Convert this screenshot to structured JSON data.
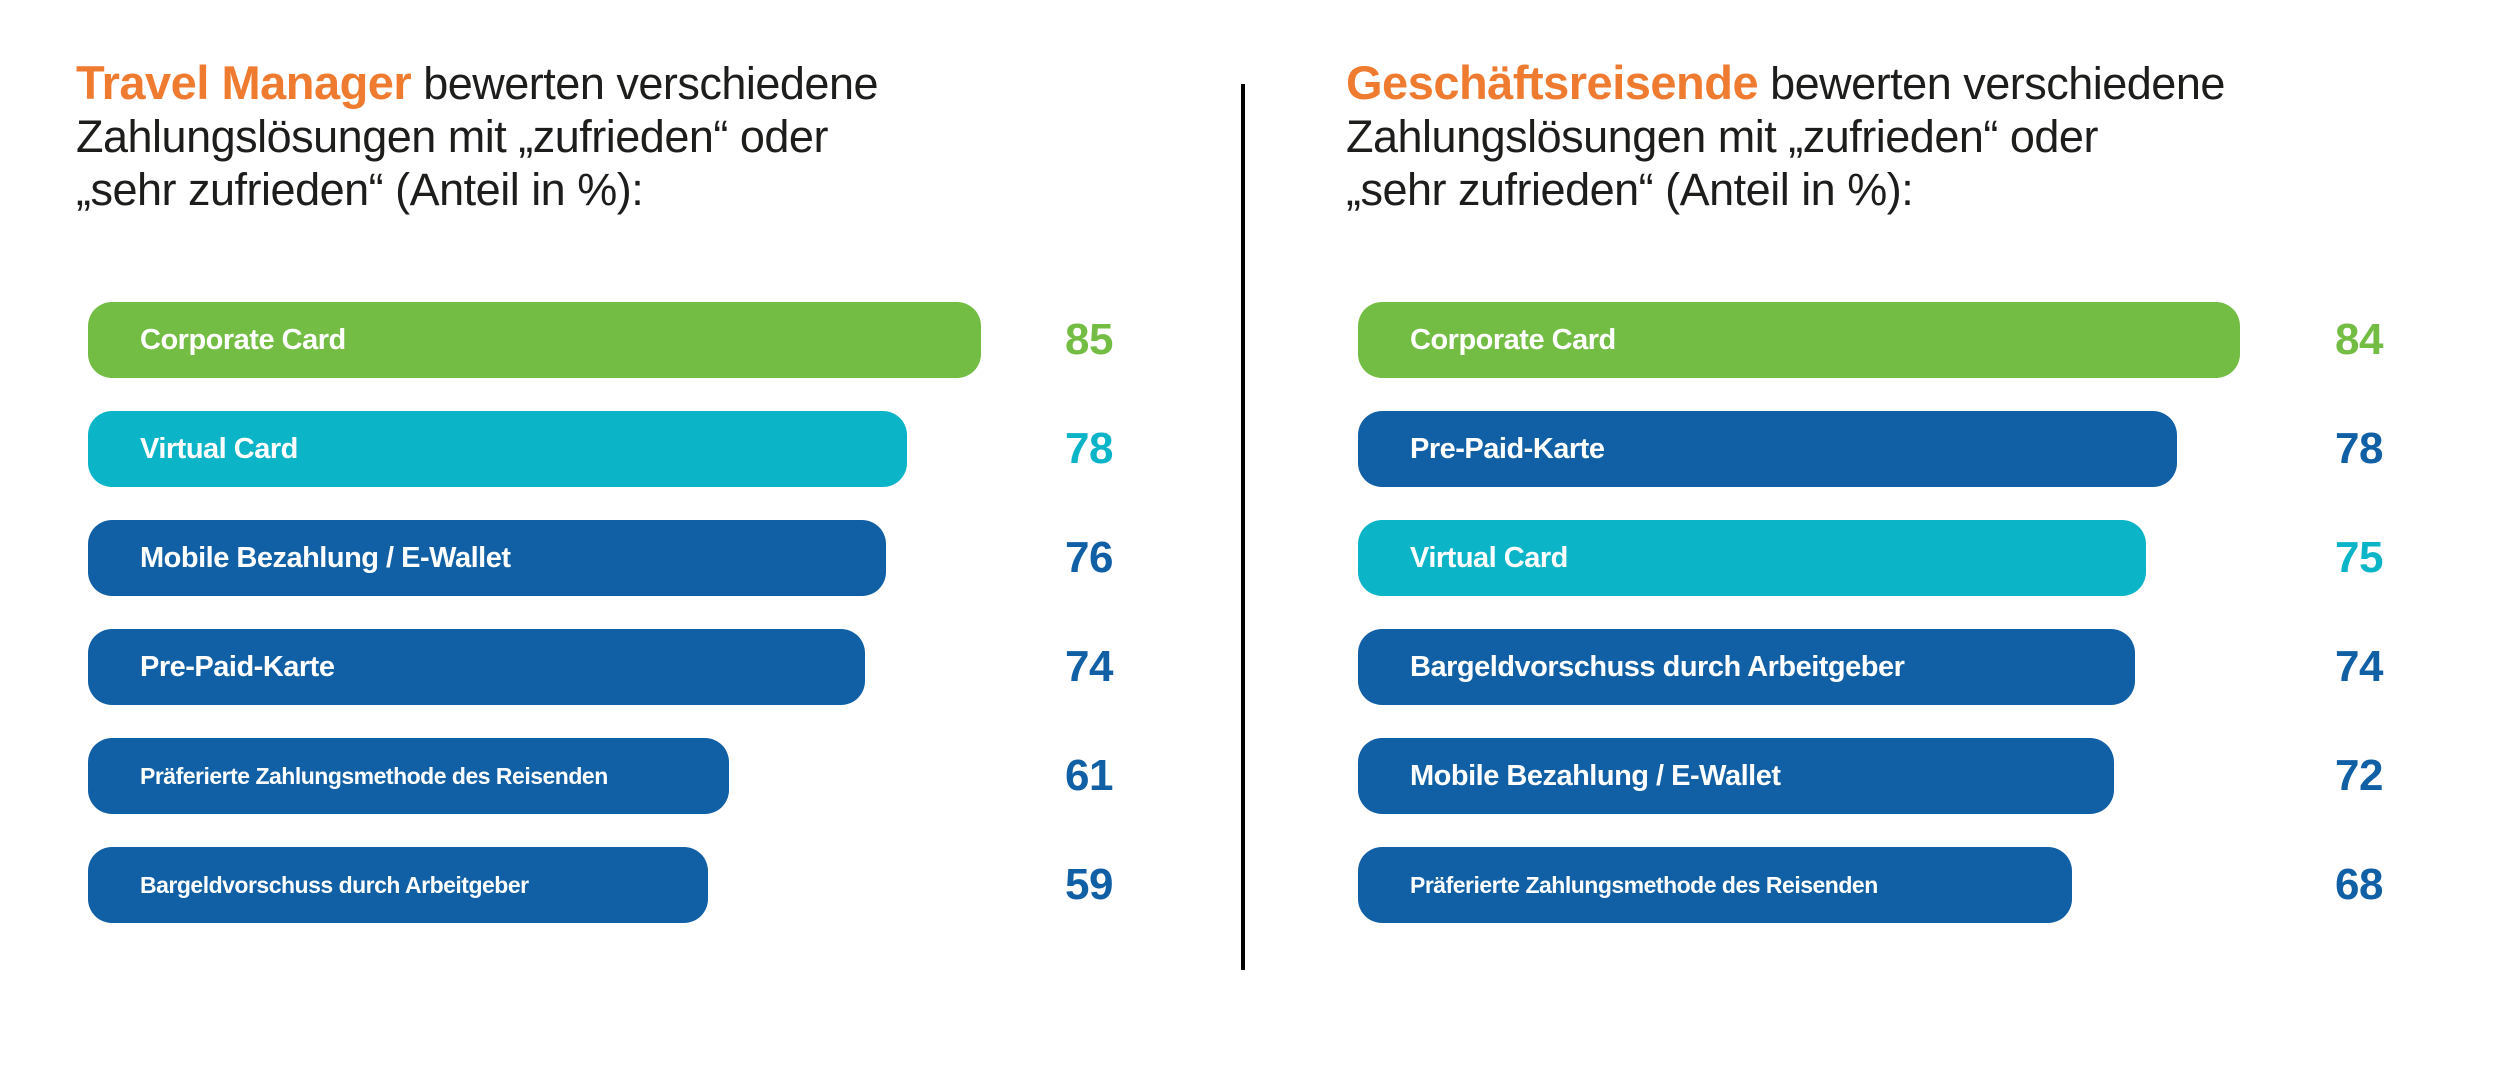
{
  "colors": {
    "green": "#74bd44",
    "cyan": "#0cb4c8",
    "blue": "#1160a5",
    "orange": "#ef7b30",
    "text": "#1d1d1b",
    "divider": "#000000"
  },
  "panels": [
    {
      "title": {
        "highlight": "Travel Manager",
        "rest_lines": [
          "bewerten verschiedene",
          "Zahlungslösungen mit „zufrieden“ oder",
          "„sehr zufrieden“ (Anteil in %):"
        ]
      },
      "bars": [
        {
          "label": "Corporate Card",
          "value": 85,
          "color": "green"
        },
        {
          "label": "Virtual Card",
          "value": 78,
          "color": "cyan"
        },
        {
          "label": "Mobile Bezahlung / E-Wallet",
          "value": 76,
          "color": "blue"
        },
        {
          "label": "Pre-Paid-Karte",
          "value": 74,
          "color": "blue"
        },
        {
          "label": "Präferierte Zahlungsmethode des Reisenden",
          "value": 61,
          "color": "blue"
        },
        {
          "label": "Bargeldvorschuss durch Arbeitgeber",
          "value": 59,
          "color": "blue"
        }
      ]
    },
    {
      "title": {
        "highlight": "Geschäftsreisende",
        "rest_lines": [
          "bewerten verschiedene",
          "Zahlungslösungen mit „zufrieden“ oder",
          "„sehr zufrieden“ (Anteil in %):"
        ]
      },
      "bars": [
        {
          "label": "Corporate Card",
          "value": 84,
          "color": "green"
        },
        {
          "label": "Pre-Paid-Karte",
          "value": 78,
          "color": "blue"
        },
        {
          "label": "Virtual Card",
          "value": 75,
          "color": "cyan"
        },
        {
          "label": "Bargeldvorschuss durch Arbeitgeber",
          "value": 74,
          "color": "blue"
        },
        {
          "label": "Mobile Bezahlung / E-Wallet",
          "value": 72,
          "color": "blue"
        },
        {
          "label": "Präferierte Zahlungsmethode des Reisenden",
          "value": 68,
          "color": "blue"
        }
      ]
    }
  ],
  "chart_data": [
    {
      "type": "bar",
      "orientation": "horizontal",
      "title": "Travel Manager bewerten verschiedene Zahlungslösungen mit „zufrieden“ oder „sehr zufrieden“ (Anteil in %):",
      "categories": [
        "Corporate Card",
        "Virtual Card",
        "Mobile Bezahlung / E-Wallet",
        "Pre-Paid-Karte",
        "Präferierte Zahlungsmethode des Reisenden",
        "Bargeldvorschuss durch Arbeitgeber"
      ],
      "values": [
        85,
        78,
        76,
        74,
        61,
        59
      ],
      "unit": "%",
      "xlabel": "",
      "ylabel": "",
      "xlim": [
        0,
        100
      ],
      "grid": false,
      "legend": false,
      "bar_colors": [
        "#74bd44",
        "#0cb4c8",
        "#1160a5",
        "#1160a5",
        "#1160a5",
        "#1160a5"
      ],
      "value_labels": "right of bars, colored to match bar"
    },
    {
      "type": "bar",
      "orientation": "horizontal",
      "title": "Geschäftsreisende bewerten verschiedene Zahlungslösungen mit „zufrieden“ oder „sehr zufrieden“ (Anteil in %):",
      "categories": [
        "Corporate Card",
        "Pre-Paid-Karte",
        "Virtual Card",
        "Bargeldvorschuss durch Arbeitgeber",
        "Mobile Bezahlung / E-Wallet",
        "Präferierte Zahlungsmethode des Reisenden"
      ],
      "values": [
        84,
        78,
        75,
        74,
        72,
        68
      ],
      "unit": "%",
      "xlabel": "",
      "ylabel": "",
      "xlim": [
        0,
        100
      ],
      "grid": false,
      "legend": false,
      "bar_colors": [
        "#74bd44",
        "#1160a5",
        "#0cb4c8",
        "#1160a5",
        "#1160a5",
        "#1160a5"
      ],
      "value_labels": "right of bars, colored to match bar"
    }
  ]
}
